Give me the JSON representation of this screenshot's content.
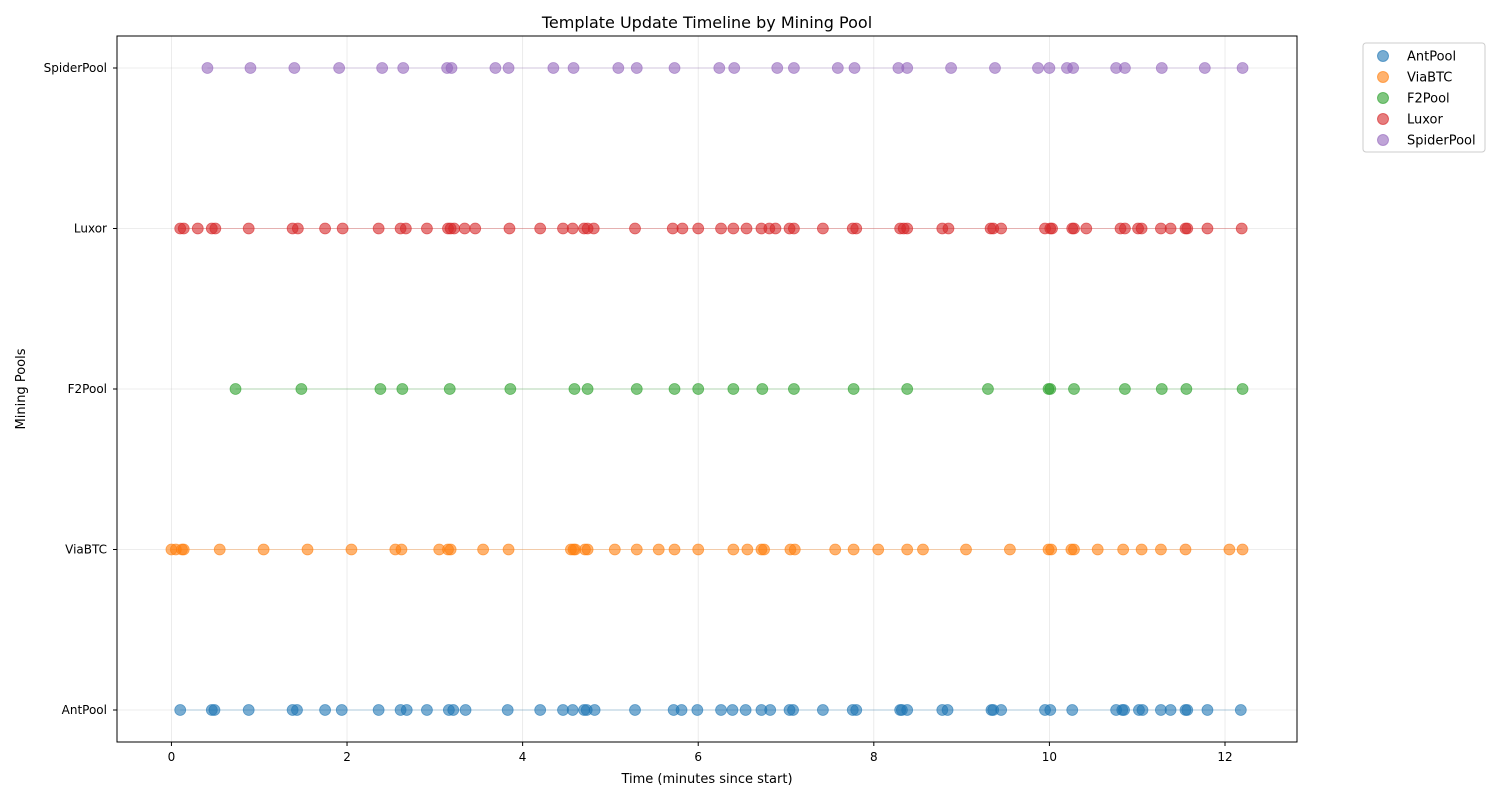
{
  "chart_data": {
    "type": "scatter",
    "title": "Template Update Timeline by Mining Pool",
    "xlabel": "Time (minutes since start)",
    "ylabel": "Mining Pools",
    "xlim": [
      -0.62,
      12.82
    ],
    "x_ticks": [
      "0",
      "2",
      "4",
      "6",
      "8",
      "10",
      "12"
    ],
    "categories": [
      "AntPool",
      "ViaBTC",
      "F2Pool",
      "Luxor",
      "SpiderPool"
    ],
    "grid": true,
    "legend_position": "outside-top-right",
    "series": [
      {
        "name": "AntPool",
        "category": "AntPool",
        "color": "#1f77b4",
        "x": [
          0.1,
          0.46,
          0.49,
          0.88,
          1.38,
          1.43,
          1.75,
          1.94,
          2.36,
          2.61,
          2.68,
          2.91,
          3.16,
          3.21,
          3.35,
          3.83,
          4.2,
          4.46,
          4.57,
          4.7,
          4.73,
          4.82,
          5.28,
          5.72,
          5.81,
          5.99,
          6.26,
          6.39,
          6.54,
          6.72,
          6.82,
          7.04,
          7.08,
          7.42,
          7.76,
          7.8,
          8.3,
          8.32,
          8.38,
          8.78,
          8.84,
          9.34,
          9.36,
          9.45,
          9.95,
          10.01,
          10.26,
          10.76,
          10.83,
          10.85,
          11.02,
          11.06,
          11.27,
          11.38,
          11.55,
          11.57,
          11.8,
          12.18
        ]
      },
      {
        "name": "ViaBTC",
        "category": "ViaBTC",
        "color": "#ff7f0e",
        "x": [
          0.0,
          0.05,
          0.12,
          0.14,
          0.55,
          1.05,
          1.55,
          2.05,
          2.55,
          2.62,
          3.05,
          3.15,
          3.18,
          3.55,
          3.84,
          4.55,
          4.58,
          4.6,
          4.71,
          4.74,
          5.05,
          5.3,
          5.55,
          5.73,
          6.0,
          6.4,
          6.56,
          6.72,
          6.75,
          7.05,
          7.1,
          7.56,
          7.77,
          8.05,
          8.38,
          8.56,
          9.05,
          9.55,
          9.99,
          10.02,
          10.25,
          10.28,
          10.55,
          10.84,
          11.05,
          11.27,
          11.55,
          12.05,
          12.2
        ]
      },
      {
        "name": "F2Pool",
        "category": "F2Pool",
        "color": "#2ca02c",
        "x": [
          0.73,
          1.48,
          2.38,
          2.63,
          3.17,
          3.86,
          4.59,
          4.74,
          5.3,
          5.73,
          6.0,
          6.4,
          6.73,
          7.09,
          7.77,
          8.38,
          9.3,
          9.99,
          10.01,
          10.28,
          10.86,
          11.28,
          11.56,
          12.2
        ]
      },
      {
        "name": "Luxor",
        "category": "Luxor",
        "color": "#d62728",
        "x": [
          0.1,
          0.14,
          0.3,
          0.46,
          0.5,
          0.88,
          1.38,
          1.44,
          1.75,
          1.95,
          2.36,
          2.61,
          2.67,
          2.91,
          3.15,
          3.18,
          3.22,
          3.34,
          3.46,
          3.85,
          4.2,
          4.46,
          4.57,
          4.7,
          4.74,
          4.81,
          5.28,
          5.71,
          5.82,
          6.0,
          6.26,
          6.4,
          6.55,
          6.72,
          6.81,
          6.88,
          7.04,
          7.09,
          7.42,
          7.76,
          7.8,
          8.3,
          8.34,
          8.38,
          8.78,
          8.85,
          9.33,
          9.36,
          9.45,
          9.95,
          10.01,
          10.03,
          10.26,
          10.28,
          10.42,
          10.81,
          10.86,
          11.01,
          11.05,
          11.27,
          11.38,
          11.55,
          11.57,
          11.8,
          12.19
        ]
      },
      {
        "name": "SpiderPool",
        "category": "SpiderPool",
        "color": "#9467bd",
        "x": [
          0.41,
          0.9,
          1.4,
          1.91,
          2.4,
          2.64,
          3.14,
          3.19,
          3.69,
          3.84,
          4.35,
          4.58,
          5.09,
          5.3,
          5.73,
          6.24,
          6.41,
          6.9,
          7.09,
          7.59,
          7.78,
          8.28,
          8.38,
          8.88,
          9.38,
          9.87,
          10.0,
          10.2,
          10.27,
          10.76,
          10.86,
          11.28,
          11.77,
          12.2
        ]
      }
    ]
  }
}
